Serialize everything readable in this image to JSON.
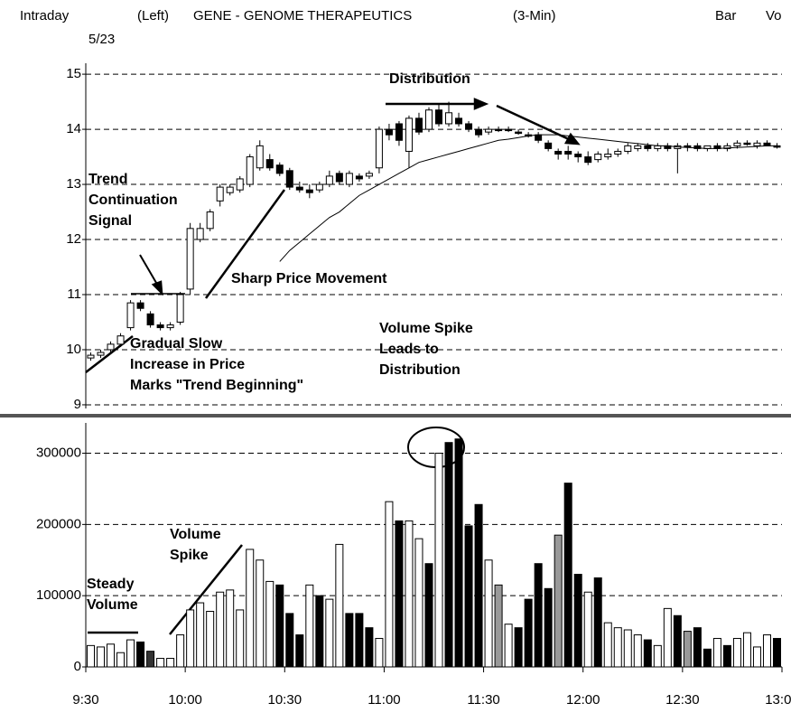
{
  "header": {
    "left": "Intraday",
    "date": "5/23",
    "side": "(Left)",
    "title": "GENE - GENOME THERAPEUTICS",
    "interval": "(3-Min)",
    "mode": "Bar",
    "cut": "Vo"
  },
  "chart_data": [
    {
      "type": "candlestick",
      "xlim": [
        0,
        70
      ],
      "ylim": [
        8.95,
        15.1
      ],
      "yticks": [
        9,
        10,
        11,
        12,
        13,
        14,
        15
      ],
      "grid": true,
      "up_color": "#ffffff",
      "down_color": "#000000",
      "open": [
        9.85,
        9.9,
        10.0,
        10.1,
        10.4,
        10.85,
        10.65,
        10.45,
        10.4,
        10.5,
        11.1,
        12.0,
        12.2,
        12.7,
        12.85,
        12.9,
        13.0,
        13.3,
        13.45,
        13.35,
        13.25,
        12.95,
        12.9,
        12.9,
        13.0,
        13.2,
        13.0,
        13.15,
        13.15,
        13.3,
        14.0,
        14.1,
        13.6,
        14.2,
        14.0,
        14.35,
        14.1,
        14.2,
        14.1,
        14.0,
        13.95,
        14.0,
        14.0,
        13.95,
        13.9,
        13.9,
        13.75,
        13.6,
        13.6,
        13.55,
        13.5,
        13.45,
        13.5,
        13.55,
        13.6,
        13.65,
        13.7,
        13.65,
        13.7,
        13.65,
        13.7,
        13.7,
        13.65,
        13.7,
        13.65,
        13.7,
        13.75,
        13.7,
        13.75,
        13.7
      ],
      "high": [
        9.95,
        10.0,
        10.15,
        10.3,
        10.9,
        10.9,
        10.7,
        10.5,
        10.5,
        11.05,
        12.3,
        12.3,
        12.55,
        13.0,
        13.0,
        13.15,
        13.55,
        13.8,
        13.55,
        13.4,
        13.3,
        13.05,
        13.0,
        13.05,
        13.25,
        13.25,
        13.25,
        13.2,
        13.25,
        14.05,
        14.1,
        14.15,
        14.25,
        14.3,
        14.4,
        14.45,
        14.5,
        14.3,
        14.15,
        14.05,
        14.05,
        14.05,
        14.05,
        14.0,
        13.95,
        13.95,
        13.8,
        13.65,
        13.7,
        13.6,
        13.6,
        13.6,
        13.65,
        13.65,
        13.75,
        13.75,
        13.75,
        13.75,
        13.75,
        13.75,
        13.75,
        13.75,
        13.7,
        13.75,
        13.75,
        13.8,
        13.8,
        13.8,
        13.8,
        13.75
      ],
      "low": [
        9.8,
        9.85,
        9.95,
        10.05,
        10.35,
        10.7,
        10.4,
        10.35,
        10.35,
        10.45,
        11.0,
        11.95,
        12.15,
        12.6,
        12.8,
        12.85,
        12.95,
        13.25,
        13.25,
        13.15,
        12.9,
        12.85,
        12.75,
        12.85,
        12.95,
        13.0,
        12.95,
        13.05,
        13.1,
        13.2,
        13.8,
        13.7,
        13.3,
        13.9,
        13.95,
        14.05,
        14.05,
        14.05,
        13.95,
        13.85,
        13.9,
        13.95,
        13.95,
        13.9,
        13.85,
        13.75,
        13.6,
        13.45,
        13.45,
        13.4,
        13.35,
        13.4,
        13.45,
        13.5,
        13.55,
        13.6,
        13.6,
        13.6,
        13.6,
        13.2,
        13.6,
        13.6,
        13.6,
        13.6,
        13.6,
        13.65,
        13.7,
        13.65,
        13.7,
        13.65
      ],
      "close": [
        9.9,
        9.95,
        10.1,
        10.25,
        10.85,
        10.75,
        10.45,
        10.4,
        10.45,
        11.0,
        12.2,
        12.2,
        12.5,
        12.95,
        12.95,
        13.1,
        13.5,
        13.7,
        13.3,
        13.2,
        12.95,
        12.9,
        12.85,
        13.0,
        13.15,
        13.05,
        13.2,
        13.1,
        13.2,
        14.0,
        13.9,
        13.8,
        14.2,
        13.95,
        14.35,
        14.1,
        14.3,
        14.1,
        14.0,
        13.9,
        14.0,
        14.0,
        14.0,
        13.95,
        13.9,
        13.8,
        13.65,
        13.55,
        13.55,
        13.5,
        13.4,
        13.55,
        13.55,
        13.6,
        13.7,
        13.7,
        13.65,
        13.7,
        13.65,
        13.7,
        13.7,
        13.65,
        13.7,
        13.65,
        13.7,
        13.75,
        13.75,
        13.75,
        13.7,
        13.7
      ],
      "moving_average": [
        null,
        null,
        null,
        null,
        null,
        null,
        null,
        null,
        null,
        null,
        null,
        null,
        null,
        null,
        null,
        null,
        null,
        null,
        null,
        11.6,
        11.8,
        11.95,
        12.1,
        12.25,
        12.4,
        12.5,
        12.65,
        12.8,
        12.9,
        13.0,
        13.1,
        13.2,
        13.3,
        13.4,
        13.45,
        13.5,
        13.55,
        13.6,
        13.65,
        13.7,
        13.75,
        13.8,
        13.82,
        13.85,
        13.88,
        13.9,
        13.9,
        13.9,
        13.88,
        13.86,
        13.84,
        13.82,
        13.8,
        13.78,
        13.76,
        13.74,
        13.72,
        13.7,
        13.7,
        13.68,
        13.67,
        13.66,
        13.65,
        13.65,
        13.66,
        13.67,
        13.68,
        13.69,
        13.7,
        13.7
      ],
      "annotations": [
        {
          "lines": [
            "Trend",
            "Continuation",
            "Signal"
          ]
        },
        {
          "lines": [
            "Sharp Price Movement"
          ]
        },
        {
          "lines": [
            "Distribution"
          ]
        },
        {
          "lines": [
            "Volume Spike",
            "Leads to",
            "Distribution"
          ]
        },
        {
          "lines": [
            "Gradual Slow",
            "Increase in Price",
            "Marks \"Trend Beginning\""
          ]
        }
      ]
    },
    {
      "type": "bar",
      "xlim": [
        0,
        70
      ],
      "xticks": [
        {
          "value": 0,
          "label": "9:30"
        },
        {
          "value": 10,
          "label": "10:00"
        },
        {
          "value": 20,
          "label": "10:30"
        },
        {
          "value": 30,
          "label": "11:00"
        },
        {
          "value": 40,
          "label": "11:30"
        },
        {
          "value": 50,
          "label": "12:00"
        },
        {
          "value": 60,
          "label": "12:30"
        },
        {
          "value": 70,
          "label": "13:00"
        }
      ],
      "ylim": [
        0,
        340000
      ],
      "yticks": [
        0,
        100000,
        200000,
        300000
      ],
      "grid": true,
      "values": [
        30000,
        28000,
        32000,
        20000,
        38000,
        35000,
        22000,
        12000,
        12000,
        45000,
        80000,
        90000,
        78000,
        105000,
        108000,
        80000,
        165000,
        150000,
        120000,
        115000,
        75000,
        45000,
        115000,
        100000,
        95000,
        172000,
        75000,
        75000,
        55000,
        40000,
        232000,
        205000,
        205000,
        180000,
        145000,
        300000,
        315000,
        320000,
        198000,
        228000,
        150000,
        115000,
        60000,
        55000,
        95000,
        145000,
        110000,
        185000,
        258000,
        130000,
        105000,
        125000,
        62000,
        55000,
        52000,
        45000,
        38000,
        30000,
        82000,
        72000,
        50000,
        55000,
        25000,
        40000,
        30000,
        40000,
        48000,
        28000,
        45000,
        40000
      ],
      "colors": [
        "#fff",
        "#fff",
        "#fff",
        "#fff",
        "#fff",
        "#000",
        "#333",
        "#fff",
        "#fff",
        "#fff",
        "#fff",
        "#fff",
        "#fff",
        "#fff",
        "#fff",
        "#fff",
        "#fff",
        "#fff",
        "#fff",
        "#000",
        "#000",
        "#000",
        "#fff",
        "#000",
        "#fff",
        "#fff",
        "#000",
        "#000",
        "#000",
        "#fff",
        "#fff",
        "#000",
        "#fff",
        "#fff",
        "#000",
        "#fff",
        "#000",
        "#000",
        "#000",
        "#000",
        "#fff",
        "#999",
        "#fff",
        "#000",
        "#000",
        "#000",
        "#000",
        "#999",
        "#000",
        "#000",
        "#fff",
        "#000",
        "#fff",
        "#fff",
        "#fff",
        "#fff",
        "#000",
        "#fff",
        "#fff",
        "#000",
        "#999",
        "#000",
        "#000",
        "#fff",
        "#000",
        "#fff",
        "#fff",
        "#fff",
        "#fff",
        "#000"
      ],
      "annotations": [
        {
          "lines": [
            "Volume",
            "Spike"
          ]
        },
        {
          "lines": [
            "Steady",
            "Volume"
          ]
        }
      ]
    }
  ]
}
